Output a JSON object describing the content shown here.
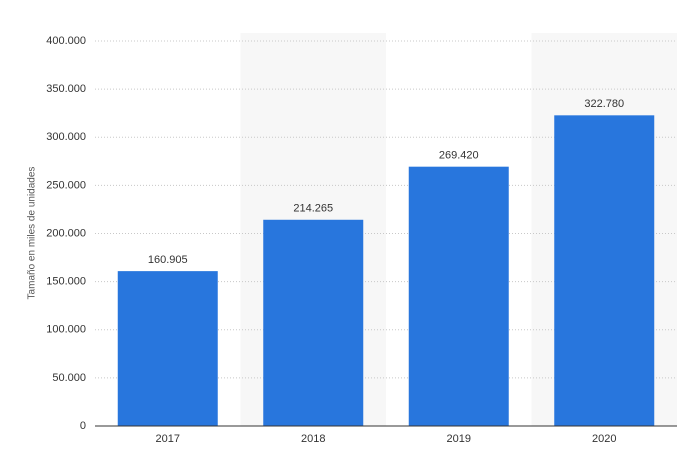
{
  "chart_data": {
    "type": "bar",
    "y_label": "Tamaño en miles de unidades",
    "categories": [
      "2017",
      "2018",
      "2019",
      "2020"
    ],
    "values": [
      160905,
      214265,
      269420,
      322780
    ],
    "value_labels": [
      "160.905",
      "214.265",
      "269.420",
      "322.780"
    ],
    "color": "#2876dd",
    "ylim": [
      0,
      400000
    ],
    "yticks": [
      0,
      {
        "value": 50000,
        "label": "50.000"
      },
      {
        "value": 100000,
        "label": "100.000"
      },
      {
        "value": 150000,
        "label": "150.000"
      },
      {
        "value": 200000,
        "label": "200.000"
      },
      {
        "value": 250000,
        "label": "250.000"
      },
      {
        "value": 300000,
        "label": "300.000"
      },
      {
        "value": 350000,
        "label": "350.000"
      },
      {
        "value": 400000,
        "label": "400.000"
      }
    ],
    "grid": true
  }
}
